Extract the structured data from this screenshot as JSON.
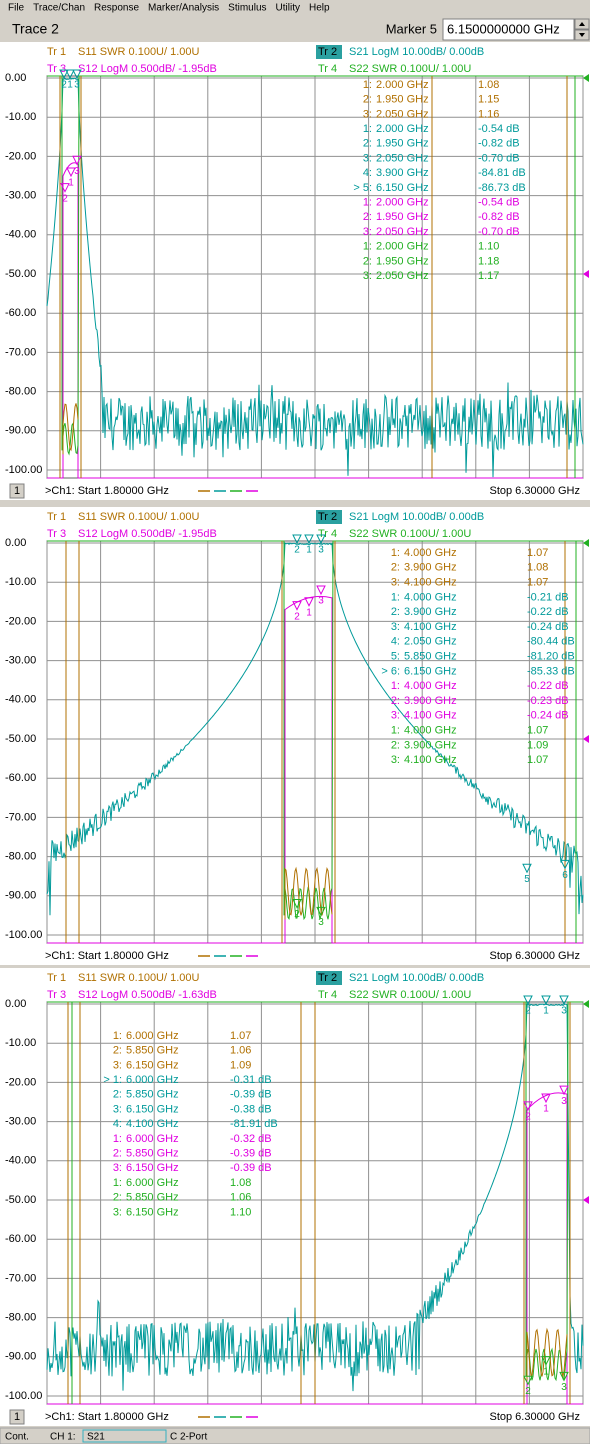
{
  "menu": [
    "File",
    "Trace/Chan",
    "Response",
    "Marker/Analysis",
    "Stimulus",
    "Utility",
    "Help"
  ],
  "toolbar": {
    "title": "Trace 2",
    "marker_label": "Marker 5",
    "marker_value": "6.1500000000 GHz"
  },
  "panels": [
    {
      "channel": "1",
      "headers": [
        {
          "tr": "Tr 1",
          "text": "S11 SWR 0.100U/  1.00U",
          "color": "#b07000"
        },
        {
          "tr": "Tr 2",
          "text": "S21 LogM 10.00dB/  0.00dB",
          "color": "#009a9a"
        },
        {
          "tr": "Tr 3",
          "text": "S12 LogM 0.500dB/  -1.95dB",
          "color": "#e000e0"
        },
        {
          "tr": "Tr 4",
          "text": "S22 SWR 0.100U/  1.00U",
          "color": "#22b022"
        }
      ],
      "yticks": [
        "0.00",
        "-10.00",
        "-20.00",
        "-30.00",
        "-40.00",
        "-50.00",
        "-60.00",
        "-70.00",
        "-80.00",
        "-90.00",
        "-100.00"
      ],
      "markers": [
        {
          "num": "1:",
          "freq": "2.000 GHz",
          "value": "1.08",
          "color": "#b07000"
        },
        {
          "num": "2:",
          "freq": "1.950 GHz",
          "value": "1.15",
          "color": "#b07000"
        },
        {
          "num": "3:",
          "freq": "2.050 GHz",
          "value": "1.16",
          "color": "#b07000"
        },
        {
          "num": "1:",
          "freq": "2.000 GHz",
          "value": "-0.54 dB",
          "color": "#009a9a"
        },
        {
          "num": "2:",
          "freq": "1.950 GHz",
          "value": "-0.82 dB",
          "color": "#009a9a"
        },
        {
          "num": "3:",
          "freq": "2.050 GHz",
          "value": "-0.70 dB",
          "color": "#009a9a"
        },
        {
          "num": "4:",
          "freq": "3.900 GHz",
          "value": "-84.81 dB",
          "color": "#009a9a"
        },
        {
          "num": "> 5:",
          "freq": "6.150 GHz",
          "value": "-86.73 dB",
          "color": "#009a9a"
        },
        {
          "num": "1:",
          "freq": "2.000 GHz",
          "value": "-0.54 dB",
          "color": "#e000e0"
        },
        {
          "num": "2:",
          "freq": "1.950 GHz",
          "value": "-0.82 dB",
          "color": "#e000e0"
        },
        {
          "num": "3:",
          "freq": "2.050 GHz",
          "value": "-0.70 dB",
          "color": "#e000e0"
        },
        {
          "num": "1:",
          "freq": "2.000 GHz",
          "value": "1.10",
          "color": "#22b022"
        },
        {
          "num": "2:",
          "freq": "1.950 GHz",
          "value": "1.18",
          "color": "#22b022"
        },
        {
          "num": "3:",
          "freq": "2.050 GHz",
          "value": "1.17",
          "color": "#22b022"
        }
      ],
      "flags": [
        {
          "text": "2",
          "color": "#009a9a"
        },
        {
          "text": "1",
          "color": "#009a9a"
        },
        {
          "text": "3",
          "color": "#009a9a"
        },
        {
          "text": "3",
          "color": "#e000e0"
        },
        {
          "text": "1",
          "color": "#e000e0"
        },
        {
          "text": "2",
          "color": "#e000e0"
        }
      ],
      "start": ">Ch1: Start  1.80000 GHz",
      "stop": "Stop  6.30000 GHz"
    },
    {
      "channel": "",
      "headers": [
        {
          "tr": "Tr 1",
          "text": "S11 SWR 0.100U/  1.00U",
          "color": "#b07000"
        },
        {
          "tr": "Tr 2",
          "text": "S21 LogM 10.00dB/  0.00dB",
          "color": "#009a9a"
        },
        {
          "tr": "Tr 3",
          "text": "S12 LogM 0.500dB/  -1.95dB",
          "color": "#e000e0"
        },
        {
          "tr": "Tr 4",
          "text": "S22 SWR 0.100U/  1.00U",
          "color": "#22b022"
        }
      ],
      "yticks": [
        "0.00",
        "-10.00",
        "-20.00",
        "-30.00",
        "-40.00",
        "-50.00",
        "-60.00",
        "-70.00",
        "-80.00",
        "-90.00",
        "-100.00"
      ],
      "markers": [
        {
          "num": "1:",
          "freq": "4.000 GHz",
          "value": "1.07",
          "color": "#b07000"
        },
        {
          "num": "2:",
          "freq": "3.900 GHz",
          "value": "1.08",
          "color": "#b07000"
        },
        {
          "num": "3:",
          "freq": "4.100 GHz",
          "value": "1.07",
          "color": "#b07000"
        },
        {
          "num": "1:",
          "freq": "4.000 GHz",
          "value": "-0.21 dB",
          "color": "#009a9a"
        },
        {
          "num": "2:",
          "freq": "3.900 GHz",
          "value": "-0.22 dB",
          "color": "#009a9a"
        },
        {
          "num": "3:",
          "freq": "4.100 GHz",
          "value": "-0.24 dB",
          "color": "#009a9a"
        },
        {
          "num": "4:",
          "freq": "2.050 GHz",
          "value": "-80.44 dB",
          "color": "#009a9a"
        },
        {
          "num": "5:",
          "freq": "5.850 GHz",
          "value": "-81.20 dB",
          "color": "#009a9a"
        },
        {
          "num": "> 6:",
          "freq": "6.150 GHz",
          "value": "-85.33 dB",
          "color": "#009a9a"
        },
        {
          "num": "1:",
          "freq": "4.000 GHz",
          "value": "-0.22 dB",
          "color": "#e000e0"
        },
        {
          "num": "2:",
          "freq": "3.900 GHz",
          "value": "-0.23 dB",
          "color": "#e000e0"
        },
        {
          "num": "3:",
          "freq": "4.100 GHz",
          "value": "-0.24 dB",
          "color": "#e000e0"
        },
        {
          "num": "1:",
          "freq": "4.000 GHz",
          "value": "1.07",
          "color": "#22b022"
        },
        {
          "num": "2:",
          "freq": "3.900 GHz",
          "value": "1.09",
          "color": "#22b022"
        },
        {
          "num": "3:",
          "freq": "4.100 GHz",
          "value": "1.07",
          "color": "#22b022"
        }
      ],
      "flags": [
        {
          "text": "2",
          "color": "#009a9a"
        },
        {
          "text": "1",
          "color": "#009a9a"
        },
        {
          "text": "3",
          "color": "#009a9a"
        },
        {
          "text": "2",
          "color": "#e000e0"
        },
        {
          "text": "1",
          "color": "#e000e0"
        },
        {
          "text": "3",
          "color": "#e000e0"
        },
        {
          "text": "2",
          "color": "#22b022"
        },
        {
          "text": "3",
          "color": "#22b022"
        },
        {
          "text": "5",
          "color": "#009a9a"
        },
        {
          "text": "6",
          "color": "#009a9a"
        }
      ],
      "start": ">Ch1: Start  1.80000 GHz",
      "stop": "Stop  6.30000 GHz"
    },
    {
      "channel": "1",
      "headers": [
        {
          "tr": "Tr 1",
          "text": "S11 SWR 0.100U/  1.00U",
          "color": "#b07000"
        },
        {
          "tr": "Tr 2",
          "text": "S21 LogM 10.00dB/  0.00dB",
          "color": "#009a9a"
        },
        {
          "tr": "Tr 3",
          "text": "S12 LogM 0.500dB/  -1.63dB",
          "color": "#e000e0"
        },
        {
          "tr": "Tr 4",
          "text": "S22 SWR 0.100U/  1.00U",
          "color": "#22b022"
        }
      ],
      "yticks": [
        "0.00",
        "-10.00",
        "-20.00",
        "-30.00",
        "-40.00",
        "-50.00",
        "-60.00",
        "-70.00",
        "-80.00",
        "-90.00",
        "-100.00"
      ],
      "markers": [
        {
          "num": "1:",
          "freq": "6.000 GHz",
          "value": "1.07",
          "color": "#b07000"
        },
        {
          "num": "2:",
          "freq": "5.850 GHz",
          "value": "1.06",
          "color": "#b07000"
        },
        {
          "num": "3:",
          "freq": "6.150 GHz",
          "value": "1.09",
          "color": "#b07000"
        },
        {
          "num": "> 1:",
          "freq": "6.000 GHz",
          "value": "-0.31 dB",
          "color": "#009a9a"
        },
        {
          "num": "2:",
          "freq": "5.850 GHz",
          "value": "-0.39 dB",
          "color": "#009a9a"
        },
        {
          "num": "3:",
          "freq": "6.150 GHz",
          "value": "-0.38 dB",
          "color": "#009a9a"
        },
        {
          "num": "4:",
          "freq": "4.100 GHz",
          "value": "-81.91 dB",
          "color": "#009a9a"
        },
        {
          "num": "1:",
          "freq": "6.000 GHz",
          "value": "-0.32 dB",
          "color": "#e000e0"
        },
        {
          "num": "2:",
          "freq": "5.850 GHz",
          "value": "-0.39 dB",
          "color": "#e000e0"
        },
        {
          "num": "3:",
          "freq": "6.150 GHz",
          "value": "-0.39 dB",
          "color": "#e000e0"
        },
        {
          "num": "1:",
          "freq": "6.000 GHz",
          "value": "1.08",
          "color": "#22b022"
        },
        {
          "num": "2:",
          "freq": "5.850 GHz",
          "value": "1.06",
          "color": "#22b022"
        },
        {
          "num": "3:",
          "freq": "6.150 GHz",
          "value": "1.10",
          "color": "#22b022"
        }
      ],
      "flags": [
        {
          "text": "2",
          "color": "#009a9a"
        },
        {
          "text": "1",
          "color": "#009a9a"
        },
        {
          "text": "3",
          "color": "#009a9a"
        },
        {
          "text": "2",
          "color": "#e000e0"
        },
        {
          "text": "1",
          "color": "#e000e0"
        },
        {
          "text": "3",
          "color": "#e000e0"
        },
        {
          "text": "1",
          "color": "#22b022"
        },
        {
          "text": "2",
          "color": "#22b022"
        },
        {
          "text": "3",
          "color": "#22b022"
        }
      ],
      "start": ">Ch1: Start  1.80000 GHz",
      "stop": "Stop  6.30000 GHz"
    }
  ],
  "status": {
    "mode": "Cont.",
    "channel": "CH 1:",
    "trace": "S21",
    "port": "C  2-Port"
  }
}
